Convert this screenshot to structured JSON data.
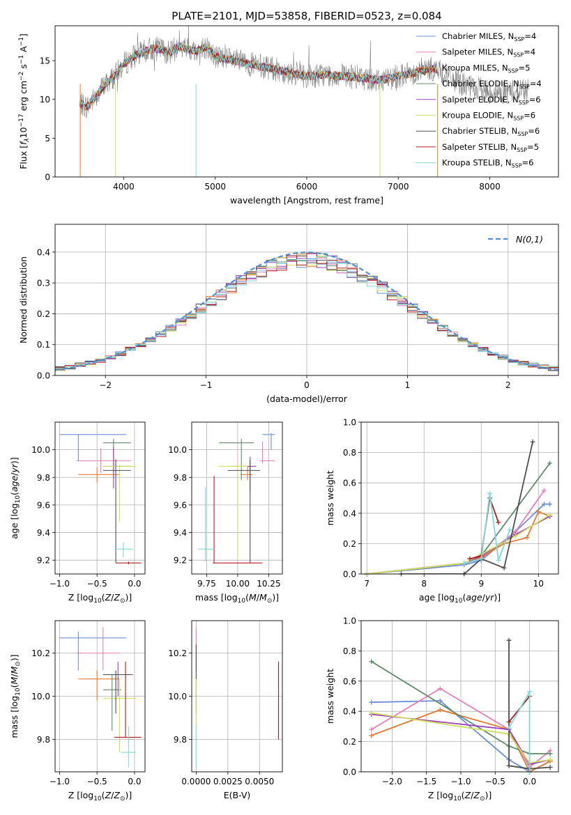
{
  "page_title": "PLATE=2101, MJD=53858, FIBERID=0523, z=0.084",
  "colors": {
    "axis": "#000000",
    "grid": "#b0b0b0",
    "data_spectrum": "#808080",
    "normal_curve": "#4f8fd6"
  },
  "chart_data": [
    {
      "id": "spectrum",
      "type": "line",
      "title": "",
      "xlabel": "wavelength [Angstrom, rest frame]",
      "ylabel": "Flux [f_λ 10^-17 erg cm^-2 s^-1 A^-1]",
      "xlim": [
        3250,
        8750
      ],
      "ylim": [
        0,
        19.5
      ],
      "x_ticks": [
        4000,
        5000,
        6000,
        7000,
        8000
      ],
      "y_ticks": [
        0,
        5,
        10,
        15
      ],
      "grid": false,
      "legend_position": "top-right",
      "legend": [
        {
          "label": "Chabrier MILES, N",
          "sub": "SSP",
          "val": "=4",
          "color": "#6a8fd8"
        },
        {
          "label": "Salpeter MILES, N",
          "sub": "SSP",
          "val": "=4",
          "color": "#e87fb8"
        },
        {
          "label": "Kroupa MILES, N",
          "sub": "SSP",
          "val": "=5",
          "color": "#e27a2e"
        },
        {
          "label": "Chabrier ELODIE, N",
          "sub": "SSP",
          "val": "=4",
          "color": "#5f8a6a"
        },
        {
          "label": "Salpeter ELODIE, N",
          "sub": "SSP",
          "val": "=6",
          "color": "#9b3fc0"
        },
        {
          "label": "Kroupa ELODIE, N",
          "sub": "SSP",
          "val": "=6",
          "color": "#cfe05a"
        },
        {
          "label": "Chabrier STELIB, N",
          "sub": "SSP",
          "val": "=6",
          "color": "#4d4d4d"
        },
        {
          "label": "Salpeter STELIB, N",
          "sub": "SSP",
          "val": "=5",
          "color": "#b01c1c"
        },
        {
          "label": "Kroupa STELIB, N",
          "sub": "SSP",
          "val": "=6",
          "color": "#7fd8dc"
        }
      ],
      "spectrum_data": {
        "x": [
          3520,
          3600,
          3700,
          3800,
          3900,
          4000,
          4100,
          4200,
          4300,
          4400,
          4500,
          4600,
          4700,
          4800,
          4900,
          5000,
          5200,
          5400,
          5600,
          5800,
          6000,
          6200,
          6400,
          6600,
          6800,
          7000,
          7200,
          7400,
          7600,
          7800,
          8000,
          8200,
          8400
        ],
        "y": [
          9.5,
          9.0,
          10.5,
          12.0,
          13.0,
          14.5,
          15.5,
          16.0,
          16.5,
          16.5,
          16.0,
          16.8,
          16.5,
          16.2,
          16.8,
          15.5,
          15.0,
          14.5,
          14.0,
          13.5,
          13.0,
          13.2,
          13.0,
          12.8,
          12.5,
          13.0,
          13.5,
          14.0,
          12.5,
          11.5,
          11.0,
          11.0,
          11.3
        ]
      }
    },
    {
      "id": "residuals",
      "type": "step",
      "title": "",
      "xlabel": "(data-model)/error",
      "ylabel": "Normed distribution",
      "xlim": [
        -2.5,
        2.5
      ],
      "ylim": [
        0,
        0.49
      ],
      "x_ticks": [
        -2,
        -1,
        0,
        1,
        2
      ],
      "y_ticks": [
        0.0,
        0.1,
        0.2,
        0.3,
        0.4
      ],
      "grid": true,
      "legend_position": "top-right",
      "legend_label": "N(0,1)",
      "bin_width": 0.1,
      "normal_curve": {
        "mean": 0,
        "sigma": 1
      }
    },
    {
      "id": "age_vs_Z",
      "type": "errorbar",
      "xlabel": "Z [log10(Z/Z_sun)]",
      "ylabel": "age [log10(age/yr)]",
      "xlim": [
        -1.06,
        0.14
      ],
      "ylim": [
        9.1,
        10.2
      ],
      "x_ticks": [
        -1.0,
        -0.5,
        0.0
      ],
      "y_ticks": [
        9.2,
        9.4,
        9.6,
        9.8,
        10.0
      ],
      "grid": true,
      "points": [
        {
          "x": -0.75,
          "xlo": -1.0,
          "xhi": -0.11,
          "y": 10.11,
          "ylo": 9.92,
          "yhi": 10.11,
          "color": "#6a8fd8"
        },
        {
          "x": -0.45,
          "xlo": -0.77,
          "xhi": -0.05,
          "y": 9.92,
          "ylo": 9.83,
          "yhi": 10.01,
          "color": "#e87fb8"
        },
        {
          "x": -0.5,
          "xlo": -0.75,
          "xhi": -0.2,
          "y": 9.82,
          "ylo": 9.76,
          "yhi": 9.87,
          "color": "#e27a2e"
        },
        {
          "x": -0.28,
          "xlo": -0.42,
          "xhi": -0.05,
          "y": 10.05,
          "ylo": 9.79,
          "yhi": 10.08,
          "color": "#5f8a6a"
        },
        {
          "x": -0.28,
          "xlo": -0.42,
          "xhi": -0.03,
          "y": 9.88,
          "ylo": 9.72,
          "yhi": 10.02,
          "color": "#9b3fc0"
        },
        {
          "x": -0.2,
          "xlo": -0.42,
          "xhi": 0.02,
          "y": 9.88,
          "ylo": 9.48,
          "yhi": 9.89,
          "color": "#cfe05a"
        },
        {
          "x": -0.25,
          "xlo": -0.42,
          "xhi": -0.05,
          "y": 9.85,
          "ylo": 9.18,
          "yhi": 9.93,
          "color": "#4d4d4d"
        },
        {
          "x": -0.08,
          "xlo": -0.25,
          "xhi": 0.09,
          "y": 9.18,
          "ylo": 9.17,
          "yhi": 9.19,
          "color": "#b01c1c"
        },
        {
          "x": -0.15,
          "xlo": -0.25,
          "xhi": -0.02,
          "y": 9.28,
          "ylo": 9.22,
          "yhi": 9.33,
          "color": "#7fd8dc"
        }
      ]
    },
    {
      "id": "age_vs_mass",
      "type": "errorbar",
      "xlabel": "mass [log10(M/M_sun)]",
      "ylabel": "",
      "xlim": [
        9.63,
        10.36
      ],
      "ylim": [
        9.1,
        10.2
      ],
      "x_ticks": [
        9.75,
        10.0,
        10.25
      ],
      "y_ticks": [
        9.2,
        9.4,
        9.6,
        9.8,
        10.0
      ],
      "grid": true,
      "points": [
        {
          "x": 10.27,
          "xlo": 10.2,
          "xhi": 10.3,
          "y": 10.11,
          "ylo": 10.0,
          "yhi": 10.12,
          "color": "#6a8fd8"
        },
        {
          "x": 10.2,
          "xlo": 10.18,
          "xhi": 10.3,
          "y": 9.92,
          "ylo": 9.9,
          "yhi": 10.06,
          "color": "#e87fb8"
        },
        {
          "x": 10.08,
          "xlo": 10.02,
          "xhi": 10.12,
          "y": 9.82,
          "ylo": 9.78,
          "yhi": 9.88,
          "color": "#e27a2e"
        },
        {
          "x": 10.03,
          "xlo": 9.85,
          "xhi": 10.13,
          "y": 10.05,
          "ylo": 9.78,
          "yhi": 10.08,
          "color": "#5f8a6a"
        },
        {
          "x": 10.1,
          "xlo": 9.95,
          "xhi": 10.15,
          "y": 9.88,
          "ylo": 9.7,
          "yhi": 9.95,
          "color": "#9b3fc0"
        },
        {
          "x": 10.0,
          "xlo": 9.85,
          "xhi": 10.08,
          "y": 9.88,
          "ylo": 9.2,
          "yhi": 9.9,
          "color": "#cfe05a"
        },
        {
          "x": 10.1,
          "xlo": 9.92,
          "xhi": 10.18,
          "y": 9.85,
          "ylo": 9.18,
          "yhi": 9.93,
          "color": "#4d4d4d"
        },
        {
          "x": 9.81,
          "xlo": 9.8,
          "xhi": 10.2,
          "y": 9.18,
          "ylo": 9.18,
          "yhi": 9.81,
          "color": "#b01c1c"
        },
        {
          "x": 9.74,
          "xlo": 9.68,
          "xhi": 9.81,
          "y": 9.28,
          "ylo": 9.19,
          "yhi": 9.73,
          "color": "#7fd8dc"
        }
      ]
    },
    {
      "id": "massweight_vs_age",
      "type": "line",
      "xlabel": "age [log10(age/yr)]",
      "ylabel": "mass weight",
      "xlim": [
        6.9,
        10.35
      ],
      "ylim": [
        0,
        1.0
      ],
      "x_ticks": [
        7,
        8,
        9,
        10
      ],
      "y_ticks": [
        0.0,
        0.2,
        0.4,
        0.6,
        0.8,
        1.0
      ],
      "grid": true,
      "series": [
        {
          "color": "#6a8fd8",
          "x": [
            7.0,
            8.7,
            9.0,
            9.6,
            10.1,
            10.2
          ],
          "y": [
            0.0,
            0.06,
            0.09,
            0.28,
            0.46,
            0.46
          ]
        },
        {
          "color": "#e87fb8",
          "x": [
            7.0,
            8.7,
            9.0,
            9.6,
            10.1
          ],
          "y": [
            0.0,
            0.07,
            0.1,
            0.28,
            0.55
          ]
        },
        {
          "color": "#e27a2e",
          "x": [
            7.0,
            8.7,
            9.0,
            9.4,
            9.8,
            10.0,
            10.2
          ],
          "y": [
            0.0,
            0.07,
            0.11,
            0.2,
            0.24,
            0.41,
            0.38
          ]
        },
        {
          "color": "#5f8a6a",
          "x": [
            7.0,
            8.7,
            9.0,
            10.2
          ],
          "y": [
            0.0,
            0.07,
            0.12,
            0.73
          ]
        },
        {
          "color": "#9b3fc0",
          "x": [
            7.0,
            8.7,
            9.0,
            9.6,
            10.2
          ],
          "y": [
            0.0,
            0.07,
            0.12,
            0.26,
            0.38
          ]
        },
        {
          "color": "#cfe05a",
          "x": [
            7.0,
            8.7,
            9.0,
            9.6,
            10.2
          ],
          "y": [
            0.0,
            0.07,
            0.13,
            0.25,
            0.39
          ]
        },
        {
          "color": "#4d4d4d",
          "x": [
            7.6,
            8.7,
            9.0,
            9.4,
            9.9
          ],
          "y": [
            0.0,
            0.0,
            0.1,
            0.04,
            0.87
          ]
        },
        {
          "color": "#b01c1c",
          "x": [
            8.8,
            9.0,
            9.15,
            9.3
          ],
          "y": [
            0.1,
            0.12,
            0.5,
            0.34
          ]
        },
        {
          "color": "#7fd8dc",
          "x": [
            8.7,
            9.0,
            9.15,
            9.3,
            9.5
          ],
          "y": [
            0.07,
            0.1,
            0.53,
            0.09,
            0.29
          ]
        }
      ]
    },
    {
      "id": "mass_vs_Z",
      "type": "errorbar",
      "xlabel": "Z [log10(Z/Z_sun)]",
      "ylabel": "mass [log10(M/M_sun)]",
      "xlim": [
        -1.06,
        0.14
      ],
      "ylim": [
        9.65,
        10.35
      ],
      "x_ticks": [
        -1.0,
        -0.5,
        0.0
      ],
      "y_ticks": [
        9.8,
        10.0,
        10.2
      ],
      "grid": true,
      "points": [
        {
          "x": -0.75,
          "xlo": -1.0,
          "xhi": -0.11,
          "y": 10.27,
          "ylo": 10.12,
          "yhi": 10.3,
          "color": "#6a8fd8"
        },
        {
          "x": -0.42,
          "xlo": -0.77,
          "xhi": -0.2,
          "y": 10.2,
          "ylo": 10.12,
          "yhi": 10.32,
          "color": "#e87fb8"
        },
        {
          "x": -0.5,
          "xlo": -0.75,
          "xhi": -0.2,
          "y": 10.08,
          "ylo": 9.98,
          "yhi": 10.12,
          "color": "#e27a2e"
        },
        {
          "x": -0.3,
          "xlo": -0.42,
          "xhi": -0.18,
          "y": 10.03,
          "ylo": 9.84,
          "yhi": 10.1,
          "color": "#5f8a6a"
        },
        {
          "x": -0.22,
          "xlo": -0.42,
          "xhi": -0.02,
          "y": 10.1,
          "ylo": 10.0,
          "yhi": 10.16,
          "color": "#9b3fc0"
        },
        {
          "x": -0.2,
          "xlo": -0.42,
          "xhi": 0.02,
          "y": 9.99,
          "ylo": 9.74,
          "yhi": 10.08,
          "color": "#cfe05a"
        },
        {
          "x": -0.25,
          "xlo": -0.42,
          "xhi": -0.05,
          "y": 10.1,
          "ylo": 9.92,
          "yhi": 10.12,
          "color": "#4d4d4d"
        },
        {
          "x": -0.12,
          "xlo": -0.27,
          "xhi": 0.09,
          "y": 9.81,
          "ylo": 9.81,
          "yhi": 10.16,
          "color": "#b01c1c"
        },
        {
          "x": -0.08,
          "xlo": -0.18,
          "xhi": 0.02,
          "y": 9.74,
          "ylo": 9.67,
          "yhi": 9.86,
          "color": "#7fd8dc"
        }
      ]
    },
    {
      "id": "mass_vs_ebv",
      "type": "errorbar",
      "xlabel": "E(B-V)",
      "ylabel": "",
      "xlim": [
        -0.00035,
        0.0068
      ],
      "ylim": [
        9.65,
        10.35
      ],
      "x_ticks": [
        0.0,
        0.0025,
        0.005
      ],
      "x_tick_labels": [
        "0.0000",
        "0.0025",
        "0.0050"
      ],
      "y_ticks": [
        9.8,
        10.0,
        10.2
      ],
      "grid": true,
      "points": [
        {
          "x": 0.0,
          "xlo": 0.0,
          "xhi": 0.0,
          "y": 10.27,
          "ylo": 10.12,
          "yhi": 10.32,
          "color": "#e87fb8"
        },
        {
          "x": 0.0,
          "xlo": 0.0,
          "xhi": 0.0,
          "y": 10.1,
          "ylo": 9.92,
          "yhi": 10.24,
          "color": "#4d4d4d"
        },
        {
          "x": 0.0,
          "xlo": 0.0,
          "xhi": 0.0,
          "y": 9.95,
          "ylo": 9.84,
          "yhi": 10.08,
          "color": "#cfe05a"
        },
        {
          "x": 0.0,
          "xlo": 0.0,
          "xhi": 0.0,
          "y": 9.75,
          "ylo": 9.67,
          "yhi": 9.87,
          "color": "#7fd8dc"
        },
        {
          "x": 0.0065,
          "xlo": 0.0065,
          "xhi": 0.0065,
          "y": 9.98,
          "ylo": 9.8,
          "yhi": 10.16,
          "color": "#b01c1c"
        }
      ]
    },
    {
      "id": "massweight_vs_Z",
      "type": "line",
      "xlabel": "Z [log10(Z/Z_sun)]",
      "ylabel": "mass weight",
      "xlim": [
        -2.45,
        0.42
      ],
      "ylim": [
        0,
        1.0
      ],
      "x_ticks": [
        -2.0,
        -1.5,
        -1.0,
        -0.5,
        0.0
      ],
      "y_ticks": [
        0.0,
        0.2,
        0.4,
        0.6,
        0.8,
        1.0
      ],
      "grid": true,
      "series": [
        {
          "color": "#6a8fd8",
          "x": [
            -2.3,
            -1.3,
            -0.3,
            0.0,
            0.3
          ],
          "y": [
            0.46,
            0.47,
            0.08,
            0.0,
            0.07
          ]
        },
        {
          "color": "#e87fb8",
          "x": [
            -2.3,
            -1.3,
            -0.3,
            0.0,
            0.3
          ],
          "y": [
            0.28,
            0.55,
            0.28,
            0.03,
            0.14
          ]
        },
        {
          "color": "#e27a2e",
          "x": [
            -2.3,
            -1.3,
            -0.3,
            0.0,
            0.3
          ],
          "y": [
            0.24,
            0.41,
            0.28,
            0.0,
            0.07
          ]
        },
        {
          "color": "#5f8a6a",
          "x": [
            -2.3,
            -0.3,
            0.0,
            0.3
          ],
          "y": [
            0.73,
            0.17,
            0.12,
            0.12
          ]
        },
        {
          "color": "#9b3fc0",
          "x": [
            -2.3,
            -0.3,
            0.0,
            0.3
          ],
          "y": [
            0.38,
            0.28,
            0.05,
            0.08
          ]
        },
        {
          "color": "#cfe05a",
          "x": [
            -2.3,
            -0.3,
            0.0,
            0.3
          ],
          "y": [
            0.39,
            0.25,
            0.06,
            0.08
          ]
        },
        {
          "color": "#4d4d4d",
          "x": [
            -0.3,
            -0.3,
            0.0,
            0.3
          ],
          "y": [
            0.87,
            0.04,
            0.02,
            0.03
          ]
        },
        {
          "color": "#b01c1c",
          "x": [
            -0.3,
            0.0
          ],
          "y": [
            0.33,
            0.5
          ]
        },
        {
          "color": "#7fd8dc",
          "x": [
            -0.3,
            0.0,
            0.0
          ],
          "y": [
            0.29,
            0.53,
            0.0
          ]
        }
      ]
    }
  ]
}
